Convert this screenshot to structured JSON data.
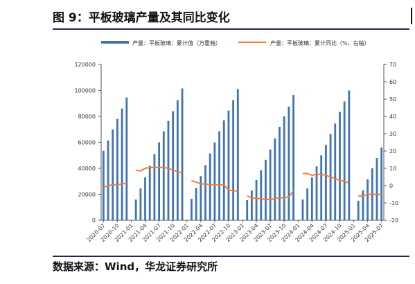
{
  "header": {
    "title": "图 9：平板玻璃产量及其同比变化"
  },
  "footer": {
    "source": "数据来源：Wind，华龙证券研究所"
  },
  "chart_data": {
    "type": "bar+line",
    "legend": {
      "position": "top",
      "items": [
        "产量：平板玻璃：累计值（万重箱）",
        "产量：平板玻璃：累计同比（%，右轴）"
      ]
    },
    "colors": {
      "bars": "#3f73b6",
      "line": "#ed7d31",
      "axis": "#555555",
      "text": "#333333"
    },
    "x_ticks": [
      "2020-07",
      "2020-10",
      "2021-01",
      "2021-04",
      "2021-07",
      "2021-10",
      "2022-01",
      "2022-04",
      "2022-07",
      "2022-10",
      "2023-01",
      "2023-04",
      "2023-07",
      "2023-10",
      "2024-01",
      "2024-04",
      "2024-07",
      "2024-10",
      "2025-01",
      "2025-04",
      "2025-07"
    ],
    "y_left": {
      "min": 0,
      "max": 120000,
      "step": 20000,
      "ticks": [
        "0",
        "20000",
        "40000",
        "60000",
        "80000",
        "100000",
        "120000"
      ]
    },
    "y_right": {
      "min": -20,
      "max": 70,
      "step": 10,
      "ticks": [
        "-20",
        "-10",
        "0",
        "10",
        "20",
        "30",
        "40",
        "50",
        "60",
        "70"
      ]
    },
    "months": [
      "2020-07",
      "2020-08",
      "2020-09",
      "2020-10",
      "2020-11",
      "2020-12",
      "2021-01",
      "2021-02",
      "2021-03",
      "2021-04",
      "2021-05",
      "2021-06",
      "2021-07",
      "2021-08",
      "2021-09",
      "2021-10",
      "2021-11",
      "2021-12",
      "2022-01",
      "2022-02",
      "2022-03",
      "2022-04",
      "2022-05",
      "2022-06",
      "2022-07",
      "2022-08",
      "2022-09",
      "2022-10",
      "2022-11",
      "2022-12",
      "2023-01",
      "2023-02",
      "2023-03",
      "2023-04",
      "2023-05",
      "2023-06",
      "2023-07",
      "2023-08",
      "2023-09",
      "2023-10",
      "2023-11",
      "2023-12",
      "2024-01",
      "2024-02",
      "2024-03",
      "2024-04",
      "2024-05",
      "2024-06",
      "2024-07",
      "2024-08",
      "2024-09",
      "2024-10",
      "2024-11",
      "2024-12",
      "2025-01",
      "2025-02",
      "2025-03",
      "2025-04",
      "2025-05",
      "2025-06",
      "2025-07"
    ],
    "series": [
      {
        "name": "产量：平板玻璃：累计值（万重箱）",
        "axis": "left",
        "type": "bar",
        "values": [
          53500,
          61500,
          70000,
          78000,
          86000,
          94500,
          null,
          16000,
          24500,
          33000,
          42000,
          51000,
          60000,
          68500,
          76500,
          84000,
          92500,
          101500,
          null,
          16500,
          25000,
          34000,
          42500,
          51500,
          60000,
          68500,
          77000,
          84500,
          92500,
          101000,
          null,
          15500,
          23000,
          31000,
          38500,
          46500,
          54500,
          63000,
          72000,
          80000,
          87500,
          96500,
          null,
          16000,
          24500,
          33000,
          41500,
          50000,
          58000,
          66500,
          74500,
          83500,
          91500,
          100000,
          null,
          15000,
          23000,
          31500,
          40000,
          48000,
          56000
        ]
      },
      {
        "name": "产量：平板玻璃：累计同比（%，右轴）",
        "axis": "right",
        "type": "line",
        "values": [
          -1,
          0,
          0.5,
          0.5,
          1,
          1.5,
          null,
          9,
          8.5,
          10,
          10.5,
          10.5,
          10.5,
          10.5,
          10,
          9,
          8,
          7.5,
          null,
          3,
          2,
          1,
          1,
          0.5,
          0.5,
          0.5,
          0.5,
          -2.5,
          -3,
          -3,
          null,
          -6,
          -7,
          -7.5,
          -7.5,
          -8,
          -8,
          -7.5,
          -7,
          -7,
          -6.5,
          -3,
          null,
          7,
          7,
          6,
          6.5,
          6.5,
          6,
          5,
          4,
          3,
          2.5,
          1.5,
          null,
          -6,
          -6,
          -5,
          -5,
          -5,
          -5
        ]
      }
    ]
  }
}
